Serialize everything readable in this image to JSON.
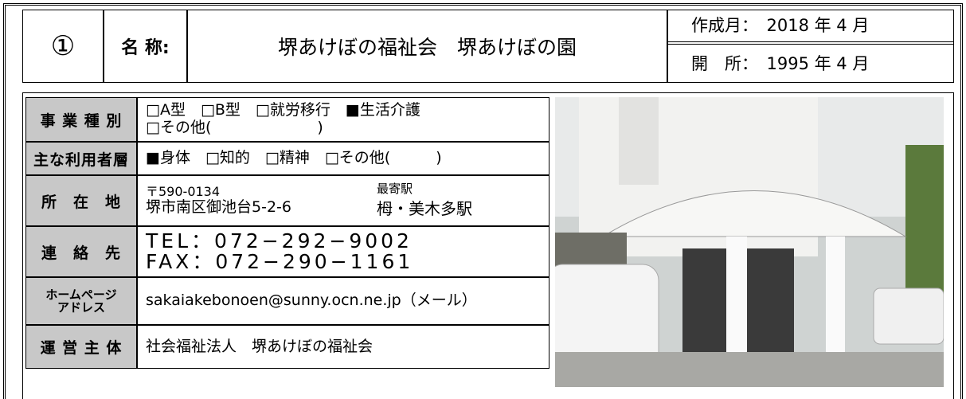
{
  "header": {
    "number": "①",
    "name_label": "名 称:",
    "name": "堺あけぼの福祉会　堺あけぼの園",
    "created": "作成月：　2018 年 4 月",
    "opened": "開　所：　1995 年 4 月"
  },
  "table": {
    "rows": [
      {
        "label": [
          "事 業 種 別"
        ],
        "lines": [
          "□A型　□B型　□就労移行　■生活介護",
          "□その他(　　　　　　　)"
        ]
      },
      {
        "label": [
          "主な利用者層"
        ],
        "lines": [
          "■身体　□知的　□精神　□その他(　　　)"
        ]
      },
      {
        "label": [
          "所　在　地"
        ],
        "lines": [
          "〒590-0134",
          "堺市南区御池台5-2-6"
        ],
        "station_label": "最寄駅",
        "station": "栂・美木多駅"
      },
      {
        "label": [
          "連　絡　先"
        ],
        "lines": [
          "TEL：072−292−9002",
          "FAX：072−290−1161"
        ]
      },
      {
        "label": [
          "ホームページ",
          "アドレス"
        ],
        "lines": [
          "sakaiakebonoen@sunny.ocn.ne.jp（メール）"
        ]
      },
      {
        "label": [
          "運 営 主 体"
        ],
        "lines": [
          "社会福祉法人　堺あけぼの福祉会"
        ]
      }
    ]
  }
}
